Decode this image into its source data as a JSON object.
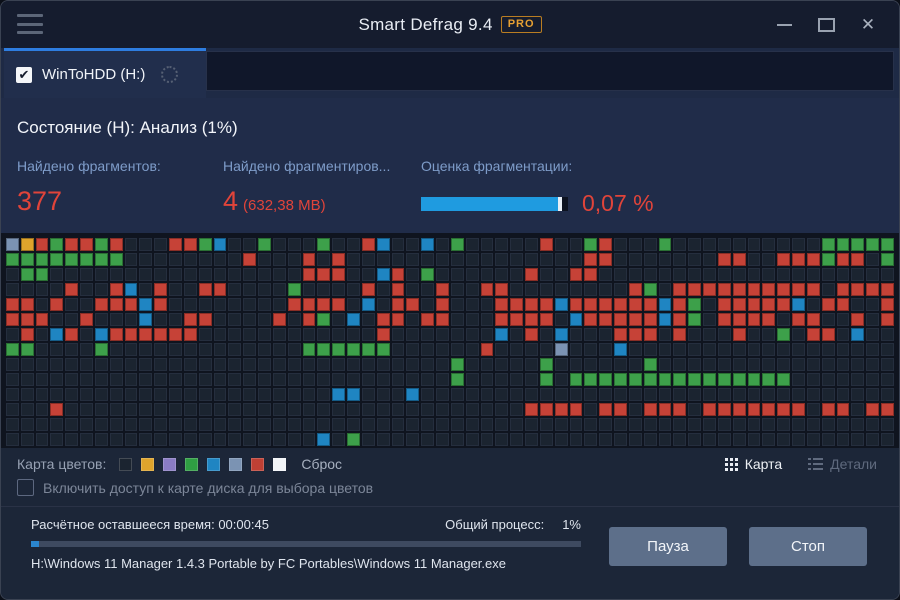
{
  "window": {
    "title": "Smart Defrag 9.4",
    "badge": "PRO",
    "accent_color": "#2e7de0"
  },
  "tab": {
    "label": "WinToHDD (H:)",
    "checked": true
  },
  "status": {
    "text": "Состояние (H): Анализ (1%)"
  },
  "stats": {
    "fragments": {
      "label": "Найдено фрагментов:",
      "value": "377"
    },
    "fragmented_files": {
      "label": "Найдено фрагментиров...",
      "value": "4",
      "value_suffix": "(632,38 MB)"
    },
    "fragmentation": {
      "label": "Оценка фрагментации:",
      "value": "0,07 %",
      "progress_percent": 93,
      "bar_color": "#1f9be0"
    }
  },
  "disk_map": {
    "columns": 60,
    "rows": 14,
    "cell_colors": {
      ".": "#1b2430",
      "R": "#c64237",
      "G": "#3da04a",
      "B": "#1f85c2",
      "S": "#7b93b3",
      "O": "#dfa42c"
    },
    "grid": [
      "SORGRRGR...RRGB..G...G..RB..B.G.....R..GR...G..........GGGGG",
      "GGGGGGGG........R...R.R................RR.......RR..RRRGRR.G",
      ".GG.................RRR..BR.G......R..RR....................",
      "....R..RB.R..RR....G....R.R..R..RR........RG.RRRRRRRRRR.RRRR",
      "RR.R..RRRBR........RRRR.B.RR.R...RRRRBRRRRRRBRG.RRRRRB.RR..R",
      "RRR..R...B..RR....R.RG.B.RR.RR...RRRR.BRRRRRBRG.RRRR.RR..R.R",
      ".R.BR.BRRRRRR............R.......B.R.B...RRR.R...R..G.RR.B..",
      "GG....G.............GGGGGG......R....S...B..................",
      "..............................G.....G......G................",
      "..............................G.....G.GGGGGGGGGGGGGGG......."
    ],
    "grid_note": "rows 10-13 follow",
    "grid_rest": [
      "......................BB...B................................",
      "...R...............................RRRR.RR.RRR.RRRRRRR.RR.RR",
      "............................................................",
      ".....................B.G...................................."
    ]
  },
  "legend": {
    "label": "Карта цветов:",
    "swatches": [
      {
        "color": "#1b2430"
      },
      {
        "color": "#dfa42c"
      },
      {
        "color": "#8a7cc4"
      },
      {
        "color": "#2f9e43"
      },
      {
        "color": "#1f85c2"
      },
      {
        "color": "#7b93b3"
      },
      {
        "color": "#bf4034"
      },
      {
        "color": "#f2f5f8"
      }
    ],
    "reset_label": "Сброс"
  },
  "view_toggle": {
    "map_label": "Карта",
    "details_label": "Детали",
    "active": "map"
  },
  "color_checkbox": {
    "label": "Включить доступ к карте диска для выбора цветов",
    "checked": false
  },
  "footer": {
    "time_label": "Расчётное оставшееся время:",
    "time_value": "00:00:45",
    "progress_label": "Общий процесс:",
    "progress_value": "1%",
    "progress_percent": 1,
    "current_file": "H:\\Windows 11 Manager 1.4.3 Portable by FC Portables\\Windows 11 Manager.exe",
    "pause_label": "Пауза",
    "stop_label": "Стоп"
  }
}
